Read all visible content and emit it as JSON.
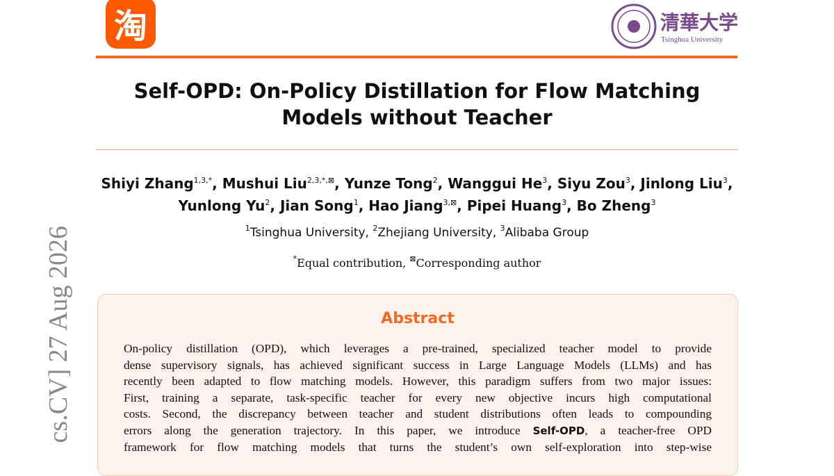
{
  "header": {
    "left_logo": "淘",
    "right_logo": {
      "chinese": "清華大学",
      "english": "Tsinghua University"
    }
  },
  "side_stamp": "cs.CV]  27 Aug 2026",
  "title": [
    "Self-OPD: On-Policy Distillation for Flow Matching",
    "Models without Teacher"
  ],
  "authors": [
    {
      "name": "Shiyi Zhang",
      "marks": "1,3,*"
    },
    {
      "name": "Mushui Liu",
      "marks": "2,3,*,⊠"
    },
    {
      "name": "Yunze Tong",
      "marks": "2"
    },
    {
      "name": "Wanggui He",
      "marks": "3"
    },
    {
      "name": "Siyu Zou",
      "marks": "3"
    },
    {
      "name": "Jinlong Liu",
      "marks": "3"
    },
    {
      "name": "Yunlong Yu",
      "marks": "2"
    },
    {
      "name": "Jian Song",
      "marks": "1"
    },
    {
      "name": "Hao Jiang",
      "marks": "3,⊠"
    },
    {
      "name": "Pipei Huang",
      "marks": "3"
    },
    {
      "name": "Bo Zheng",
      "marks": "3"
    }
  ],
  "author_separator": ", ",
  "affiliations": [
    {
      "mark": "1",
      "name": "Tsinghua University"
    },
    {
      "mark": "2",
      "name": "Zhejiang University"
    },
    {
      "mark": "3",
      "name": "Alibaba Group"
    }
  ],
  "notes": [
    {
      "mark": "*",
      "text": "Equal contribution"
    },
    {
      "mark": "⊠",
      "text": "Corresponding author"
    }
  ],
  "abstract": {
    "heading": "Abstract",
    "lines": [
      "On-policy distillation (OPD), which leverages a pre-trained, specialized teacher model to provide",
      "dense supervisory signals, has achieved significant success in Large Language Models (LLMs) and has",
      "recently been adapted to flow matching models. However, this paradigm suffers from two major issues:",
      "First, training a separate, task-specific teacher for every new objective incurs high computational",
      "costs. Second, the discrepancy between teacher and student distributions often leads to compounding",
      {
        "before": "errors along the generation trajectory. In this paper, we introduce ",
        "bold": "Self-OPD",
        "after": ", a teacher-free OPD"
      },
      "framework for flow matching models that turns the student’s own self-exploration into step-wise"
    ]
  }
}
